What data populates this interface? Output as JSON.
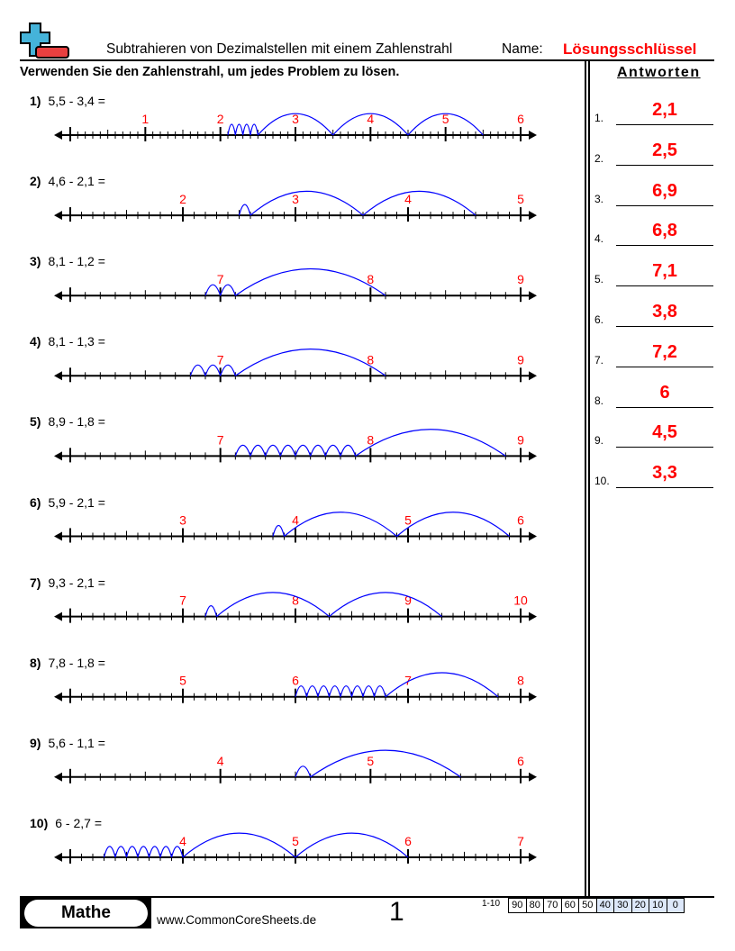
{
  "header": {
    "title": "Subtrahieren von Dezimalstellen mit einem Zahlenstrahl",
    "name_label": "Name:",
    "name_value": "Lösungsschlüssel",
    "instructions": "Verwenden Sie den Zahlenstrahl, um jedes Problem zu lösen."
  },
  "colors": {
    "answer": "#ff0000",
    "jumps": "#0000ff",
    "logo_plus": "#45b3d9",
    "logo_minus": "#e94040"
  },
  "problems": [
    {
      "num": "1)",
      "text": "5,5 - 3,4 =",
      "start": 0,
      "end": 6,
      "minuend": 5.5,
      "subtrahend": 3.4,
      "labels": [
        "1",
        "2",
        "3",
        "4",
        "5",
        "6"
      ]
    },
    {
      "num": "2)",
      "text": "4,6 - 2,1 =",
      "start": 1,
      "end": 5,
      "minuend": 4.6,
      "subtrahend": 2.1,
      "labels": [
        "2",
        "3",
        "4",
        "5"
      ]
    },
    {
      "num": "3)",
      "text": "8,1 - 1,2 =",
      "start": 6,
      "end": 9,
      "minuend": 8.1,
      "subtrahend": 1.2,
      "labels": [
        "7",
        "8",
        "9"
      ]
    },
    {
      "num": "4)",
      "text": "8,1 - 1,3 =",
      "start": 6,
      "end": 9,
      "minuend": 8.1,
      "subtrahend": 1.3,
      "labels": [
        "7",
        "8",
        "9"
      ]
    },
    {
      "num": "5)",
      "text": "8,9 - 1,8 =",
      "start": 6,
      "end": 9,
      "minuend": 8.9,
      "subtrahend": 1.8,
      "labels": [
        "7",
        "8",
        "9"
      ]
    },
    {
      "num": "6)",
      "text": "5,9 - 2,1 =",
      "start": 2,
      "end": 6,
      "minuend": 5.9,
      "subtrahend": 2.1,
      "labels": [
        "3",
        "4",
        "5",
        "6"
      ]
    },
    {
      "num": "7)",
      "text": "9,3 - 2,1 =",
      "start": 6,
      "end": 10,
      "minuend": 9.3,
      "subtrahend": 2.1,
      "labels": [
        "7",
        "8",
        "9",
        "10"
      ]
    },
    {
      "num": "8)",
      "text": "7,8 - 1,8 =",
      "start": 4,
      "end": 8,
      "minuend": 7.8,
      "subtrahend": 1.8,
      "labels": [
        "5",
        "6",
        "7",
        "8"
      ]
    },
    {
      "num": "9)",
      "text": "5,6 - 1,1 =",
      "start": 3,
      "end": 6,
      "minuend": 5.6,
      "subtrahend": 1.1,
      "labels": [
        "4",
        "5",
        "6"
      ]
    },
    {
      "num": "10)",
      "text": "6 - 2,7 =",
      "start": 3,
      "end": 7,
      "minuend": 6,
      "subtrahend": 2.7,
      "labels": [
        "4",
        "5",
        "6",
        "7"
      ]
    }
  ],
  "answers": {
    "title": "Antworten",
    "items": [
      {
        "num": "1.",
        "value": "2,1"
      },
      {
        "num": "2.",
        "value": "2,5"
      },
      {
        "num": "3.",
        "value": "6,9"
      },
      {
        "num": "4.",
        "value": "6,8"
      },
      {
        "num": "5.",
        "value": "7,1"
      },
      {
        "num": "6.",
        "value": "3,8"
      },
      {
        "num": "7.",
        "value": "7,2"
      },
      {
        "num": "8.",
        "value": "6"
      },
      {
        "num": "9.",
        "value": "4,5"
      },
      {
        "num": "10.",
        "value": "3,3"
      }
    ]
  },
  "footer": {
    "subject": "Mathe",
    "website": "www.CommonCoreSheets.de",
    "page_number": "1",
    "score_label": "1-10",
    "scores": [
      "90",
      "80",
      "70",
      "60",
      "50",
      "40",
      "30",
      "20",
      "10",
      "0"
    ]
  }
}
